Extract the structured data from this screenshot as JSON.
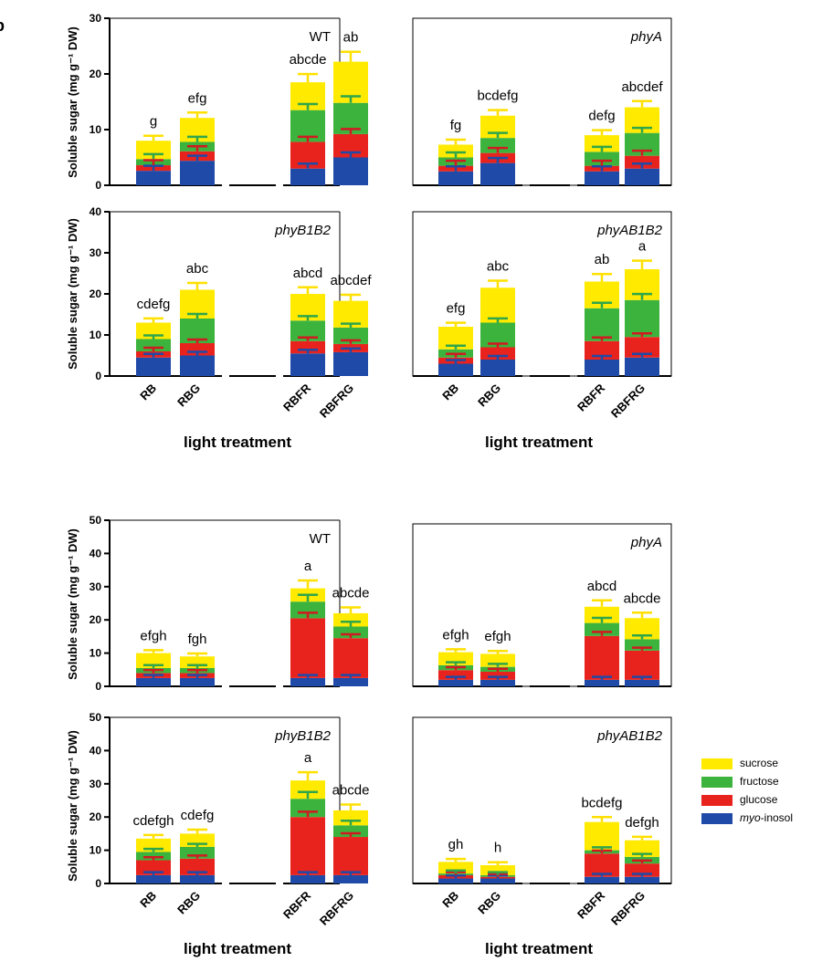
{
  "panel_label": "b",
  "y_axis_label": "Soluble sugar (mg g⁻¹ DW)",
  "x_axis_label": "light treatment",
  "colors": {
    "sucrose": "#ffea00",
    "fructose": "#3cb33c",
    "glucose": "#e8231e",
    "myo": "#1f4aa8",
    "err_suc": "#ffe000",
    "err_fru": "#2fa64a",
    "err_glu": "#d01a22",
    "err_myo": "#1f4aa8"
  },
  "legend": [
    {
      "key": "sucrose",
      "label": "sucrose"
    },
    {
      "key": "fructose",
      "label": "fructose"
    },
    {
      "key": "glucose",
      "label": "glucose"
    },
    {
      "key": "myo",
      "label_italic": "myo",
      "label_rest": "-inosol"
    }
  ],
  "chart_data": [
    {
      "type": "bar",
      "stacked": true,
      "group": "top",
      "genotype": "WT",
      "ylim": [
        0,
        30
      ],
      "yticks": [
        0,
        10,
        20,
        30
      ],
      "categories": [
        "RB",
        "RBG",
        "RBFR",
        "RBFRG"
      ],
      "series": [
        {
          "name": "myo-inosol",
          "values": [
            2.6,
            4.4,
            3.0,
            5.0
          ]
        },
        {
          "name": "glucose",
          "values": [
            1.0,
            1.7,
            4.8,
            4.2
          ]
        },
        {
          "name": "fructose",
          "values": [
            1.1,
            1.7,
            5.7,
            5.6
          ]
        },
        {
          "name": "sucrose",
          "values": [
            3.3,
            4.3,
            5.0,
            7.4
          ]
        }
      ],
      "letters": [
        "g",
        "efg",
        "abcde",
        "ab"
      ]
    },
    {
      "type": "bar",
      "stacked": true,
      "group": "top",
      "genotype": "phyA",
      "ylim": [
        0,
        30
      ],
      "categories": [
        "RB",
        "RBG",
        "RBFR",
        "RBFRG"
      ],
      "series": [
        {
          "name": "myo-inosol",
          "values": [
            2.5,
            4.0,
            2.5,
            3.0
          ]
        },
        {
          "name": "glucose",
          "values": [
            1.0,
            1.8,
            1.0,
            2.3
          ]
        },
        {
          "name": "fructose",
          "values": [
            1.5,
            2.7,
            2.5,
            4.1
          ]
        },
        {
          "name": "sucrose",
          "values": [
            2.3,
            4.0,
            3.0,
            4.6
          ]
        }
      ],
      "letters": [
        "fg",
        "bcdefg",
        "defg",
        "abcdef"
      ]
    },
    {
      "type": "bar",
      "stacked": true,
      "group": "top",
      "genotype": "phyB1B2",
      "ylim": [
        0,
        40
      ],
      "yticks": [
        0,
        10,
        20,
        30,
        40
      ],
      "categories": [
        "RB",
        "RBG",
        "RBFR",
        "RBFRG"
      ],
      "series": [
        {
          "name": "myo-inosol",
          "values": [
            4.5,
            5.0,
            5.5,
            5.8
          ]
        },
        {
          "name": "glucose",
          "values": [
            1.5,
            3.0,
            3.0,
            2.0
          ]
        },
        {
          "name": "fructose",
          "values": [
            3.0,
            6.0,
            5.0,
            4.0
          ]
        },
        {
          "name": "sucrose",
          "values": [
            4.0,
            7.0,
            6.5,
            6.5
          ]
        }
      ],
      "letters": [
        "cdefg",
        "abc",
        "abcd",
        "abcdef"
      ]
    },
    {
      "type": "bar",
      "stacked": true,
      "group": "top",
      "genotype": "phyAB1B2",
      "ylim": [
        0,
        40
      ],
      "categories": [
        "RB",
        "RBG",
        "RBFR",
        "RBFRG"
      ],
      "series": [
        {
          "name": "myo-inosol",
          "values": [
            3.0,
            4.0,
            4.0,
            4.5
          ]
        },
        {
          "name": "glucose",
          "values": [
            1.5,
            3.0,
            4.5,
            5.0
          ]
        },
        {
          "name": "fructose",
          "values": [
            2.0,
            6.0,
            8.0,
            9.0
          ]
        },
        {
          "name": "sucrose",
          "values": [
            5.5,
            8.5,
            6.5,
            7.5
          ]
        }
      ],
      "letters": [
        "efg",
        "abc",
        "ab",
        "a"
      ]
    },
    {
      "type": "bar",
      "stacked": true,
      "group": "bottom",
      "genotype": "WT",
      "ylim": [
        0,
        50
      ],
      "yticks": [
        0,
        10,
        20,
        30,
        40,
        50
      ],
      "categories": [
        "RB",
        "RBG",
        "RBFR",
        "RBFRG"
      ],
      "series": [
        {
          "name": "myo-inosol",
          "values": [
            2.5,
            2.5,
            2.5,
            2.5
          ]
        },
        {
          "name": "glucose",
          "values": [
            1.5,
            1.5,
            18.0,
            12.0
          ]
        },
        {
          "name": "fructose",
          "values": [
            1.5,
            1.5,
            5.0,
            3.5
          ]
        },
        {
          "name": "sucrose",
          "values": [
            4.5,
            3.5,
            4.0,
            4.0
          ]
        }
      ],
      "letters": [
        "efgh",
        "fgh",
        "a",
        "abcde"
      ]
    },
    {
      "type": "bar",
      "stacked": true,
      "group": "bottom",
      "genotype": "phyA",
      "ylim": [
        0,
        50
      ],
      "categories": [
        "RB",
        "RBG",
        "RBFR",
        "RBFRG"
      ],
      "series": [
        {
          "name": "myo-inosol",
          "values": [
            2.0,
            2.0,
            2.0,
            2.0
          ]
        },
        {
          "name": "glucose",
          "values": [
            3.0,
            2.5,
            13.5,
            9.0
          ]
        },
        {
          "name": "fructose",
          "values": [
            1.5,
            1.5,
            4.0,
            3.5
          ]
        },
        {
          "name": "sucrose",
          "values": [
            4.0,
            4.0,
            5.0,
            6.5
          ]
        }
      ],
      "letters": [
        "efgh",
        "efgh",
        "abcd",
        "abcde"
      ]
    },
    {
      "type": "bar",
      "stacked": true,
      "group": "bottom",
      "genotype": "phyB1B2",
      "ylim": [
        0,
        50
      ],
      "yticks": [
        0,
        10,
        20,
        30,
        40,
        50
      ],
      "categories": [
        "RB",
        "RBG",
        "RBFR",
        "RBFRG"
      ],
      "series": [
        {
          "name": "myo-inosol",
          "values": [
            2.5,
            2.5,
            2.5,
            2.5
          ]
        },
        {
          "name": "glucose",
          "values": [
            4.5,
            5.0,
            17.5,
            11.5
          ]
        },
        {
          "name": "fructose",
          "values": [
            2.5,
            3.5,
            5.5,
            3.5
          ]
        },
        {
          "name": "sucrose",
          "values": [
            4.0,
            4.0,
            5.5,
            4.5
          ]
        }
      ],
      "letters": [
        "cdefgh",
        "cdefg",
        "a",
        "abcde"
      ]
    },
    {
      "type": "bar",
      "stacked": true,
      "group": "bottom",
      "genotype": "phyAB1B2",
      "ylim": [
        0,
        50
      ],
      "categories": [
        "RB",
        "RBG",
        "RBFR",
        "RBFRG"
      ],
      "series": [
        {
          "name": "myo-inosol",
          "values": [
            1.5,
            1.5,
            2.0,
            2.0
          ]
        },
        {
          "name": "glucose",
          "values": [
            1.0,
            0.5,
            7.0,
            4.0
          ]
        },
        {
          "name": "fructose",
          "values": [
            0.5,
            0.5,
            1.0,
            2.0
          ]
        },
        {
          "name": "sucrose",
          "values": [
            3.5,
            3.0,
            8.5,
            5.0
          ]
        }
      ],
      "letters": [
        "gh",
        "h",
        "bcdefg",
        "defgh"
      ]
    }
  ]
}
